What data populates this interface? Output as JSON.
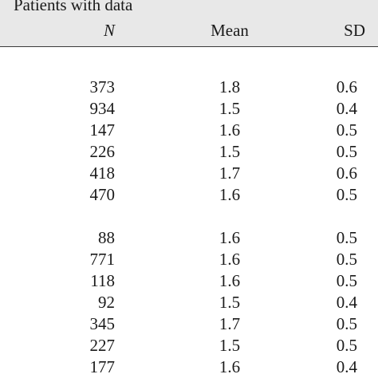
{
  "header": {
    "group_label": "Patients with data",
    "col_n": "N",
    "col_mean": "Mean",
    "col_sd": "SD"
  },
  "groups": [
    {
      "rows": [
        {
          "n": "373",
          "mean": "1.8",
          "sd": "0.6"
        },
        {
          "n": "934",
          "mean": "1.5",
          "sd": "0.4"
        },
        {
          "n": "147",
          "mean": "1.6",
          "sd": "0.5"
        },
        {
          "n": "226",
          "mean": "1.5",
          "sd": "0.5"
        },
        {
          "n": "418",
          "mean": "1.7",
          "sd": "0.6"
        },
        {
          "n": "470",
          "mean": "1.6",
          "sd": "0.5"
        }
      ]
    },
    {
      "rows": [
        {
          "n": "88",
          "mean": "1.6",
          "sd": "0.5"
        },
        {
          "n": "771",
          "mean": "1.6",
          "sd": "0.5"
        },
        {
          "n": "118",
          "mean": "1.6",
          "sd": "0.5"
        },
        {
          "n": "92",
          "mean": "1.5",
          "sd": "0.4"
        },
        {
          "n": "345",
          "mean": "1.7",
          "sd": "0.5"
        },
        {
          "n": "227",
          "mean": "1.5",
          "sd": "0.5"
        },
        {
          "n": "177",
          "mean": "1.6",
          "sd": "0.4"
        }
      ]
    }
  ]
}
